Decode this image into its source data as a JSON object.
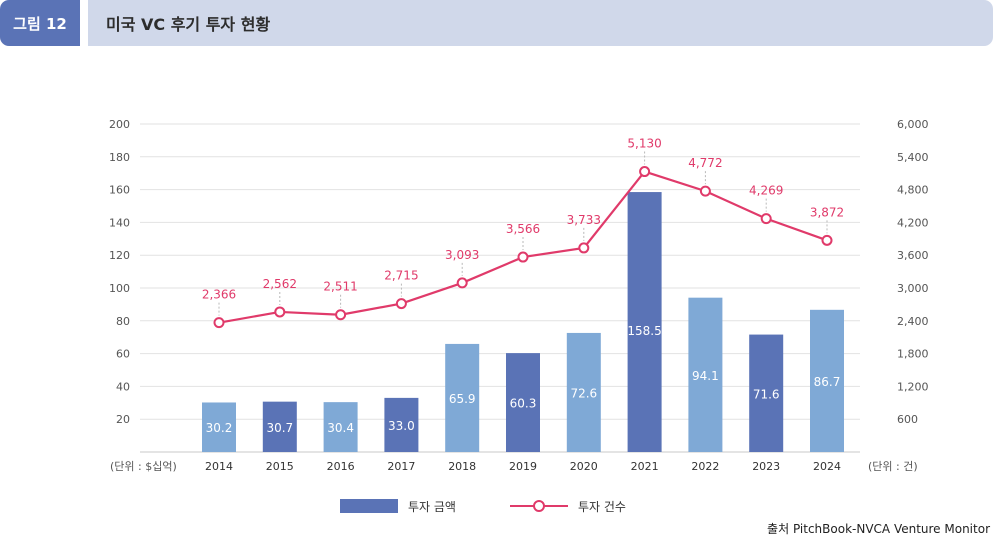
{
  "header": {
    "figure_label": "그림 12",
    "title": "미국 VC 후기 투자 현황"
  },
  "legend": {
    "bar_label": "투자 금액",
    "line_label": "투자 건수"
  },
  "source": "출처 PitchBook-NVCA Venture Monitor",
  "colors": {
    "bar_dark": "#5a73b6",
    "bar_light": "#7fa9d6",
    "line": "#e03a6a"
  },
  "chart_data": {
    "type": "bar",
    "categories": [
      "2014",
      "2015",
      "2016",
      "2017",
      "2018",
      "2019",
      "2020",
      "2021",
      "2022",
      "2023",
      "2024"
    ],
    "series": [
      {
        "name": "투자 금액",
        "type": "bar",
        "axis": "left",
        "values": [
          30.2,
          30.7,
          30.4,
          33.0,
          65.9,
          60.3,
          72.6,
          158.5,
          94.1,
          71.6,
          86.7
        ],
        "labels": [
          "30.2",
          "30.7",
          "30.4",
          "33.0",
          "65.9",
          "60.3",
          "72.6",
          "158.5",
          "94.1",
          "71.6",
          "86.7"
        ],
        "shades": [
          "light",
          "dark",
          "light",
          "dark",
          "light",
          "dark",
          "light",
          "dark",
          "light",
          "dark",
          "light"
        ]
      },
      {
        "name": "투자 건수",
        "type": "line",
        "axis": "right",
        "values": [
          2366,
          2562,
          2511,
          2715,
          3093,
          3566,
          3733,
          5130,
          4772,
          4269,
          3872
        ],
        "labels": [
          "2,366",
          "2,562",
          "2,511",
          "2,715",
          "3,093",
          "3,566",
          "3,733",
          "5,130",
          "4,772",
          "4,269",
          "3,872"
        ]
      }
    ],
    "left_axis": {
      "ylim": [
        0,
        200
      ],
      "ticks": [
        20,
        40,
        60,
        80,
        100,
        120,
        140,
        160,
        180,
        200
      ],
      "tick_labels": [
        "20",
        "40",
        "60",
        "80",
        "100",
        "120",
        "140",
        "160",
        "180",
        "200"
      ],
      "unit_label": "(단위 : $십억)"
    },
    "right_axis": {
      "ylim": [
        0,
        6000
      ],
      "ticks": [
        600,
        1200,
        1800,
        2400,
        3000,
        3600,
        4200,
        4800,
        5400,
        6000
      ],
      "tick_labels": [
        "600",
        "1,200",
        "1,800",
        "2,400",
        "3,000",
        "3,600",
        "4,200",
        "4,800",
        "5,400",
        "6,000"
      ],
      "unit_label": "(단위 : 건)"
    },
    "grid": true
  }
}
